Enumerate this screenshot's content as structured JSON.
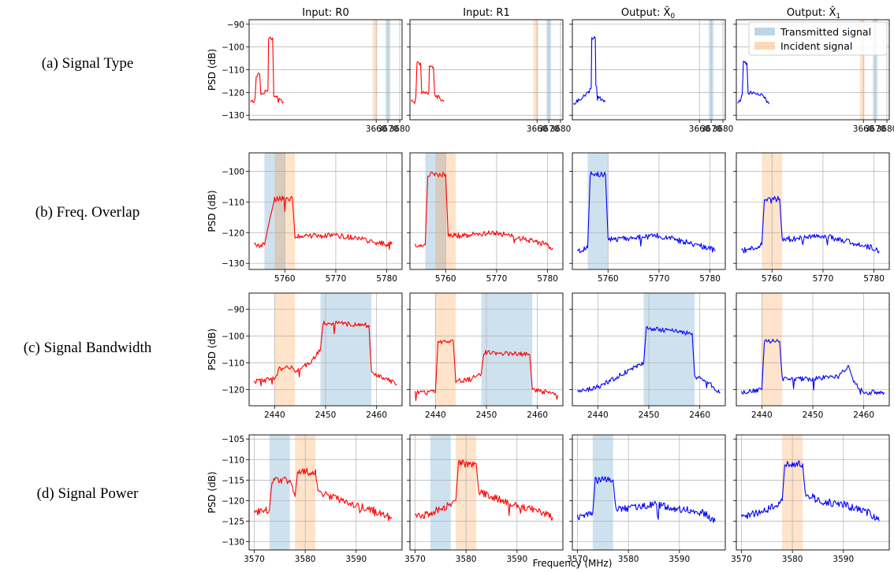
{
  "figure": {
    "column_titles": [
      "Input: R0",
      "Input: R1",
      "Output: X̂",
      "Output: X̂"
    ],
    "column_subscripts": [
      "",
      "",
      "0",
      "1"
    ],
    "row_labels": [
      "(a) Signal Type",
      "(b) Freq. Overlap",
      "(c) Signal Bandwidth",
      "(d) Signal Power"
    ],
    "y_axis_label": "PSD (dB)",
    "x_axis_label": "Frequency (MHz)",
    "legend": {
      "transmitted": "Transmitted signal",
      "incident": "Incident signal"
    },
    "colors": {
      "input_trace": "#ff0000",
      "output_trace": "#0000ff",
      "transmitted_band": "#1f77b4",
      "incident_band": "#ff7f0e",
      "grid": "#b0b0b0"
    }
  },
  "chart_data": [
    {
      "type": "line",
      "title": "Input: R0",
      "row": "(a) Signal Type",
      "xlim": [
        3552,
        3682
      ],
      "ylim": [
        -132,
        -88
      ],
      "xticks": [
        3660,
        3670,
        3680
      ],
      "yticks": [
        -130,
        -120,
        -110,
        -100,
        -90
      ],
      "bands": [
        {
          "kind": "incident",
          "x": [
            3657,
            3661
          ]
        },
        {
          "kind": "transmitted",
          "x": [
            3668,
            3672
          ]
        }
      ],
      "series": [
        {
          "color": "#ff0000",
          "x": [
            3553,
            3556,
            3557,
            3558,
            3561,
            3562,
            3565,
            3568,
            3568.5,
            3570,
            3572,
            3573,
            3576,
            3580,
            3581
          ],
          "y": [
            -124,
            -124,
            -123,
            -113,
            -112,
            -121,
            -120,
            -119,
            -96,
            -96,
            -96,
            -121,
            -122,
            -124,
            -124
          ]
        }
      ]
    },
    {
      "type": "line",
      "title": "Input: R1",
      "row": "(a) Signal Type",
      "xlim": [
        3552,
        3682
      ],
      "ylim": [
        -132,
        -88
      ],
      "xticks": [
        3660,
        3670,
        3680
      ],
      "yticks": [
        -130,
        -120,
        -110,
        -100,
        -90
      ],
      "bands": [
        {
          "kind": "incident",
          "x": [
            3657,
            3661
          ]
        },
        {
          "kind": "transmitted",
          "x": [
            3668,
            3672
          ]
        }
      ],
      "series": [
        {
          "color": "#ff0000",
          "x": [
            3553,
            3556,
            3557,
            3558,
            3561,
            3562,
            3565,
            3568,
            3568.5,
            3570,
            3572,
            3573,
            3576,
            3580,
            3581
          ],
          "y": [
            -124,
            -124,
            -122,
            -107,
            -107,
            -120,
            -120,
            -120,
            -109,
            -109,
            -109,
            -121,
            -122,
            -124,
            -124
          ]
        }
      ]
    },
    {
      "type": "line",
      "title": "Output: X̂ 0",
      "row": "(a) Signal Type",
      "xlim": [
        3552,
        3682
      ],
      "ylim": [
        -132,
        -88
      ],
      "xticks": [
        3660,
        3670,
        3680
      ],
      "yticks": [
        -130,
        -120,
        -110,
        -100,
        -90
      ],
      "bands": [
        {
          "kind": "transmitted",
          "x": [
            3668,
            3672
          ]
        }
      ],
      "series": [
        {
          "color": "#0000ff",
          "x": [
            3553,
            3558,
            3563,
            3567,
            3568,
            3568.5,
            3571.5,
            3572,
            3574,
            3578,
            3580
          ],
          "y": [
            -125,
            -123,
            -121,
            -119,
            -118,
            -96,
            -96,
            -117,
            -121,
            -124,
            -124
          ]
        }
      ]
    },
    {
      "type": "line",
      "title": "Output: X̂ 1",
      "row": "(a) Signal Type",
      "xlim": [
        3552,
        3682
      ],
      "ylim": [
        -132,
        -88
      ],
      "xticks": [
        3660,
        3670,
        3680
      ],
      "yticks": [
        -130,
        -120,
        -110,
        -100,
        -90
      ],
      "bands": [
        {
          "kind": "transmitted",
          "x": [
            3668,
            3672
          ]
        },
        {
          "kind": "incident",
          "x": [
            3657,
            3661
          ]
        }
      ],
      "legend": "top-right",
      "series": [
        {
          "color": "#0000ff",
          "x": [
            3553,
            3556,
            3557,
            3558,
            3561,
            3562,
            3565,
            3570,
            3575,
            3580
          ],
          "y": [
            -125,
            -123,
            -121,
            -107,
            -107,
            -120,
            -120,
            -120,
            -122,
            -125
          ]
        }
      ]
    },
    {
      "type": "line",
      "title": "Input: R0",
      "row": "(b) Freq. Overlap",
      "xlim": [
        5753,
        5783
      ],
      "ylim": [
        -132,
        -94
      ],
      "xticks": [
        5760,
        5770,
        5780
      ],
      "yticks": [
        -130,
        -120,
        -110,
        -100
      ],
      "bands": [
        {
          "kind": "transmitted",
          "x": [
            5756,
            5760
          ]
        },
        {
          "kind": "incident",
          "x": [
            5758,
            5762
          ]
        }
      ],
      "series": [
        {
          "color": "#ff0000",
          "x": [
            5754,
            5756,
            5757,
            5758,
            5761.5,
            5762,
            5765,
            5770,
            5775,
            5780,
            5781
          ],
          "y": [
            -124,
            -124,
            -116,
            -109,
            -109,
            -121,
            -121,
            -121,
            -122,
            -124,
            -123
          ]
        }
      ]
    },
    {
      "type": "line",
      "title": "Input: R1",
      "row": "(b) Freq. Overlap",
      "xlim": [
        5753,
        5783
      ],
      "ylim": [
        -132,
        -94
      ],
      "xticks": [
        5760,
        5770,
        5780
      ],
      "yticks": [
        -130,
        -120,
        -110,
        -100
      ],
      "bands": [
        {
          "kind": "transmitted",
          "x": [
            5756,
            5760
          ]
        },
        {
          "kind": "incident",
          "x": [
            5758,
            5762
          ]
        }
      ],
      "series": [
        {
          "color": "#ff0000",
          "x": [
            5754,
            5756,
            5756.5,
            5760,
            5760.5,
            5763,
            5770,
            5775,
            5780,
            5781
          ],
          "y": [
            -124,
            -124,
            -101,
            -101,
            -121,
            -121,
            -120,
            -122,
            -124,
            -125
          ]
        }
      ]
    },
    {
      "type": "line",
      "title": "Output: X̂ 0",
      "row": "(b) Freq. Overlap",
      "xlim": [
        5753,
        5783
      ],
      "ylim": [
        -132,
        -94
      ],
      "xticks": [
        5760,
        5770,
        5780
      ],
      "yticks": [
        -130,
        -120,
        -110,
        -100
      ],
      "bands": [
        {
          "kind": "transmitted",
          "x": [
            5756,
            5760
          ]
        }
      ],
      "series": [
        {
          "color": "#0000ff",
          "x": [
            5754,
            5756,
            5756.5,
            5759.5,
            5760,
            5763,
            5770,
            5775,
            5780,
            5781
          ],
          "y": [
            -126,
            -125,
            -101,
            -101,
            -122,
            -122,
            -121,
            -123,
            -125,
            -126
          ]
        }
      ]
    },
    {
      "type": "line",
      "title": "Output: X̂ 1",
      "row": "(b) Freq. Overlap",
      "xlim": [
        5753,
        5783
      ],
      "ylim": [
        -132,
        -94
      ],
      "xticks": [
        5760,
        5770,
        5780
      ],
      "yticks": [
        -130,
        -120,
        -110,
        -100
      ],
      "bands": [
        {
          "kind": "incident",
          "x": [
            5758,
            5762
          ]
        }
      ],
      "series": [
        {
          "color": "#0000ff",
          "x": [
            5754,
            5758,
            5758.5,
            5761.5,
            5762,
            5765,
            5770,
            5775,
            5780,
            5781
          ],
          "y": [
            -126,
            -124,
            -109,
            -109,
            -122,
            -122,
            -121,
            -123,
            -125,
            -126
          ]
        }
      ]
    },
    {
      "type": "line",
      "title": "Input: R0",
      "row": "(c) Signal Bandwidth",
      "xlim": [
        2435,
        2465
      ],
      "ylim": [
        -126,
        -84
      ],
      "xticks": [
        2440,
        2450,
        2460
      ],
      "yticks": [
        -120,
        -110,
        -100,
        -90
      ],
      "bands": [
        {
          "kind": "incident",
          "x": [
            2440,
            2444
          ]
        },
        {
          "kind": "transmitted",
          "x": [
            2449,
            2459
          ]
        }
      ],
      "series": [
        {
          "color": "#ff0000",
          "x": [
            2436,
            2440,
            2441,
            2443.5,
            2444,
            2447,
            2449,
            2449.5,
            2458.5,
            2459,
            2462,
            2464
          ],
          "y": [
            -117,
            -116,
            -112,
            -112,
            -113,
            -110,
            -105,
            -95,
            -96,
            -114,
            -116,
            -118
          ]
        }
      ]
    },
    {
      "type": "line",
      "title": "Input: R1",
      "row": "(c) Signal Bandwidth",
      "xlim": [
        2435,
        2465
      ],
      "ylim": [
        -126,
        -84
      ],
      "xticks": [
        2440,
        2450,
        2460
      ],
      "yticks": [
        -120,
        -110,
        -100,
        -90
      ],
      "bands": [
        {
          "kind": "incident",
          "x": [
            2440,
            2444
          ]
        },
        {
          "kind": "transmitted",
          "x": [
            2449,
            2459
          ]
        }
      ],
      "series": [
        {
          "color": "#ff0000",
          "x": [
            2436,
            2440,
            2440.5,
            2443.5,
            2444,
            2447,
            2449,
            2449.5,
            2458.5,
            2459,
            2462,
            2464
          ],
          "y": [
            -121,
            -121,
            -102,
            -102,
            -117,
            -116,
            -114,
            -106,
            -107,
            -120,
            -121,
            -122
          ]
        }
      ]
    },
    {
      "type": "line",
      "title": "Output: X̂ 0",
      "row": "(c) Signal Bandwidth",
      "xlim": [
        2435,
        2465
      ],
      "ylim": [
        -126,
        -84
      ],
      "xticks": [
        2440,
        2450,
        2460
      ],
      "yticks": [
        -120,
        -110,
        -100,
        -90
      ],
      "bands": [
        {
          "kind": "transmitted",
          "x": [
            2449,
            2459
          ]
        }
      ],
      "series": [
        {
          "color": "#0000ff",
          "x": [
            2436,
            2440,
            2445,
            2449,
            2449.5,
            2458.5,
            2459,
            2462,
            2464
          ],
          "y": [
            -121,
            -119,
            -114,
            -110,
            -97,
            -99,
            -115,
            -118,
            -121
          ]
        }
      ]
    },
    {
      "type": "line",
      "title": "Output: X̂ 1",
      "row": "(c) Signal Bandwidth",
      "xlim": [
        2435,
        2465
      ],
      "ylim": [
        -126,
        -84
      ],
      "xticks": [
        2440,
        2450,
        2460
      ],
      "yticks": [
        -120,
        -110,
        -100,
        -90
      ],
      "bands": [
        {
          "kind": "incident",
          "x": [
            2440,
            2444
          ]
        }
      ],
      "series": [
        {
          "color": "#0000ff",
          "x": [
            2436,
            2440,
            2440.5,
            2443.5,
            2444,
            2450,
            2455,
            2457,
            2458,
            2460,
            2464
          ],
          "y": [
            -121,
            -120,
            -102,
            -102,
            -116,
            -116,
            -115,
            -111,
            -117,
            -121,
            -121
          ]
        }
      ]
    },
    {
      "type": "line",
      "title": "Input: R0",
      "row": "(d) Signal Power",
      "xlim": [
        3569,
        3599
      ],
      "ylim": [
        -132,
        -104
      ],
      "xticks": [
        3570,
        3580,
        3590
      ],
      "yticks": [
        -130,
        -125,
        -120,
        -115,
        -110,
        -105
      ],
      "bands": [
        {
          "kind": "transmitted",
          "x": [
            3573,
            3577
          ]
        },
        {
          "kind": "incident",
          "x": [
            3578,
            3582
          ]
        }
      ],
      "series": [
        {
          "color": "#ff0000",
          "x": [
            3570,
            3573,
            3573.5,
            3577,
            3578,
            3578.5,
            3582,
            3582.5,
            3585,
            3590,
            3595,
            3597
          ],
          "y": [
            -123,
            -122,
            -115,
            -115,
            -119,
            -113,
            -113,
            -118,
            -119,
            -121,
            -123,
            -124
          ]
        }
      ]
    },
    {
      "type": "line",
      "title": "Input: R1",
      "row": "(d) Signal Power",
      "xlim": [
        3569,
        3599
      ],
      "ylim": [
        -132,
        -104
      ],
      "xticks": [
        3570,
        3580,
        3590
      ],
      "yticks": [
        -130,
        -125,
        -120,
        -115,
        -110,
        -105
      ],
      "bands": [
        {
          "kind": "transmitted",
          "x": [
            3573,
            3577
          ]
        },
        {
          "kind": "incident",
          "x": [
            3578,
            3582
          ]
        }
      ],
      "series": [
        {
          "color": "#ff0000",
          "x": [
            3570,
            3573,
            3577,
            3578,
            3578.5,
            3582,
            3582.5,
            3585,
            3590,
            3595,
            3597
          ],
          "y": [
            -124,
            -123,
            -121,
            -120,
            -111,
            -111,
            -118,
            -119,
            -121,
            -123,
            -124
          ]
        }
      ]
    },
    {
      "type": "line",
      "title": "Output: X̂ 0",
      "row": "(d) Signal Power",
      "xlim": [
        3569,
        3599
      ],
      "ylim": [
        -132,
        -104
      ],
      "xticks": [
        3570,
        3580,
        3590
      ],
      "yticks": [
        -130,
        -125,
        -120,
        -115,
        -110,
        -105
      ],
      "bands": [
        {
          "kind": "transmitted",
          "x": [
            3573,
            3577
          ]
        }
      ],
      "series": [
        {
          "color": "#0000ff",
          "x": [
            3570,
            3573,
            3573.5,
            3577,
            3577.5,
            3580,
            3585,
            3590,
            3595,
            3597
          ],
          "y": [
            -124,
            -123,
            -115,
            -115,
            -122,
            -122,
            -121,
            -122,
            -123,
            -125
          ]
        }
      ]
    },
    {
      "type": "line",
      "title": "Output: X̂ 1",
      "row": "(d) Signal Power",
      "xlim": [
        3569,
        3599
      ],
      "ylim": [
        -132,
        -104
      ],
      "xticks": [
        3570,
        3580,
        3590
      ],
      "yticks": [
        -130,
        -125,
        -120,
        -115,
        -110,
        -105
      ],
      "bands": [
        {
          "kind": "incident",
          "x": [
            3578,
            3582
          ]
        }
      ],
      "series": [
        {
          "color": "#0000ff",
          "x": [
            3570,
            3573,
            3577,
            3578,
            3578.5,
            3582,
            3582.5,
            3585,
            3590,
            3595,
            3597
          ],
          "y": [
            -124,
            -123,
            -121,
            -120,
            -111,
            -111,
            -118,
            -120,
            -121,
            -123,
            -125
          ]
        }
      ]
    }
  ]
}
